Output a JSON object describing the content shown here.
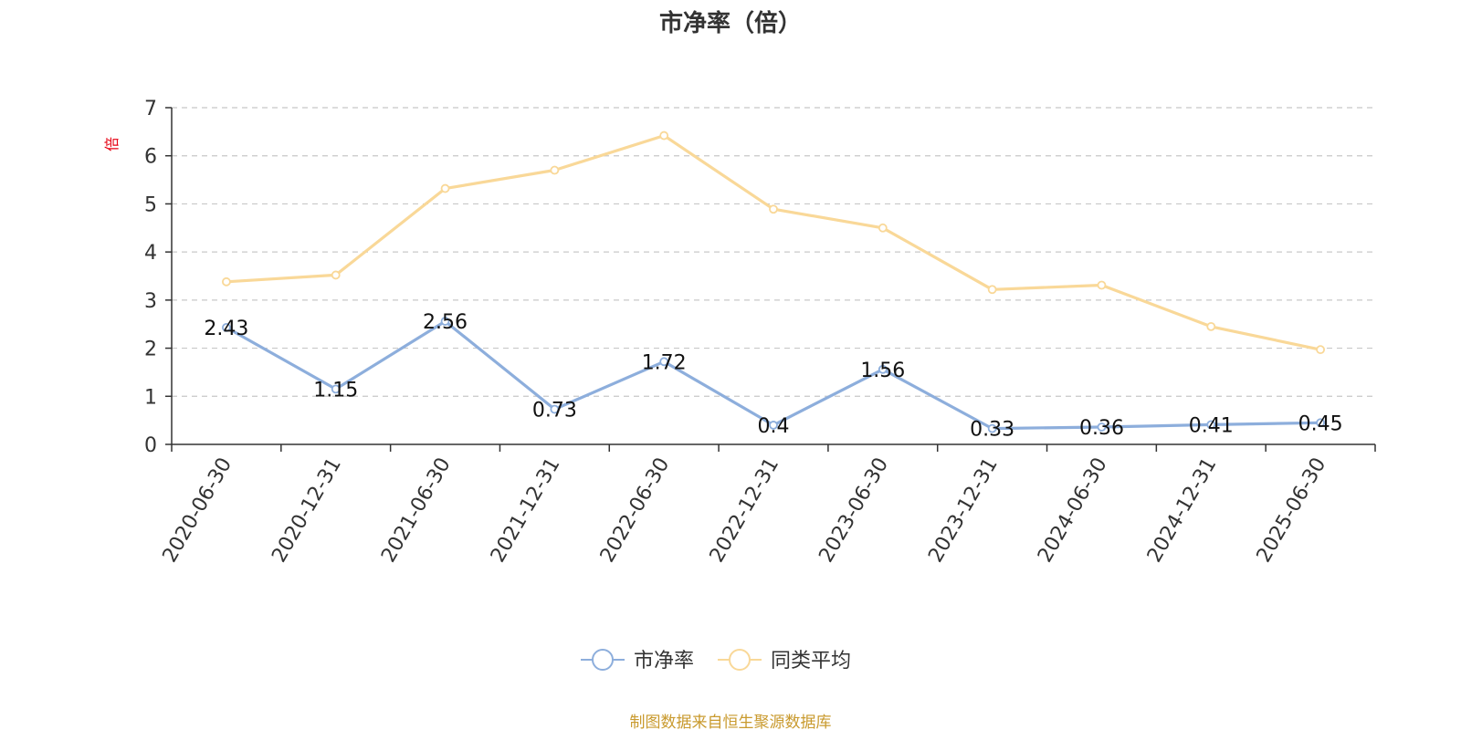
{
  "colors": {
    "pb_series": "#8DAEDC",
    "avg_series": "#F9D898",
    "axis": "#333333",
    "grid": "#C8C8C8",
    "unit": "#E60012",
    "source": "#C99A2E"
  },
  "chart_data": {
    "type": "line",
    "title": "市净率（倍）",
    "y_unit": "倍",
    "ylim": [
      0,
      7
    ],
    "y_ticks": [
      "0",
      "1",
      "2",
      "3",
      "4",
      "5",
      "6",
      "7"
    ],
    "grid": "horizontal dashed",
    "legend_position": "bottom-center",
    "categories": [
      "2020-06-30",
      "2020-12-31",
      "2021-06-30",
      "2021-12-31",
      "2022-06-30",
      "2022-12-31",
      "2023-06-30",
      "2023-12-31",
      "2024-06-30",
      "2024-12-31",
      "2025-06-30"
    ],
    "series": [
      {
        "name": "市净率",
        "values": [
          2.43,
          1.15,
          2.56,
          0.73,
          1.72,
          0.4,
          1.56,
          0.33,
          0.36,
          0.41,
          0.45
        ],
        "labels": [
          "2.43",
          "1.15",
          "2.56",
          "0.73",
          "1.72",
          "0.4",
          "1.56",
          "0.33",
          "0.36",
          "0.41",
          "0.45"
        ]
      },
      {
        "name": "同类平均",
        "values": [
          3.38,
          3.52,
          5.32,
          5.7,
          6.42,
          4.89,
          4.5,
          3.22,
          3.31,
          2.45,
          1.97
        ]
      }
    ]
  },
  "source_note": "制图数据来自恒生聚源数据库"
}
